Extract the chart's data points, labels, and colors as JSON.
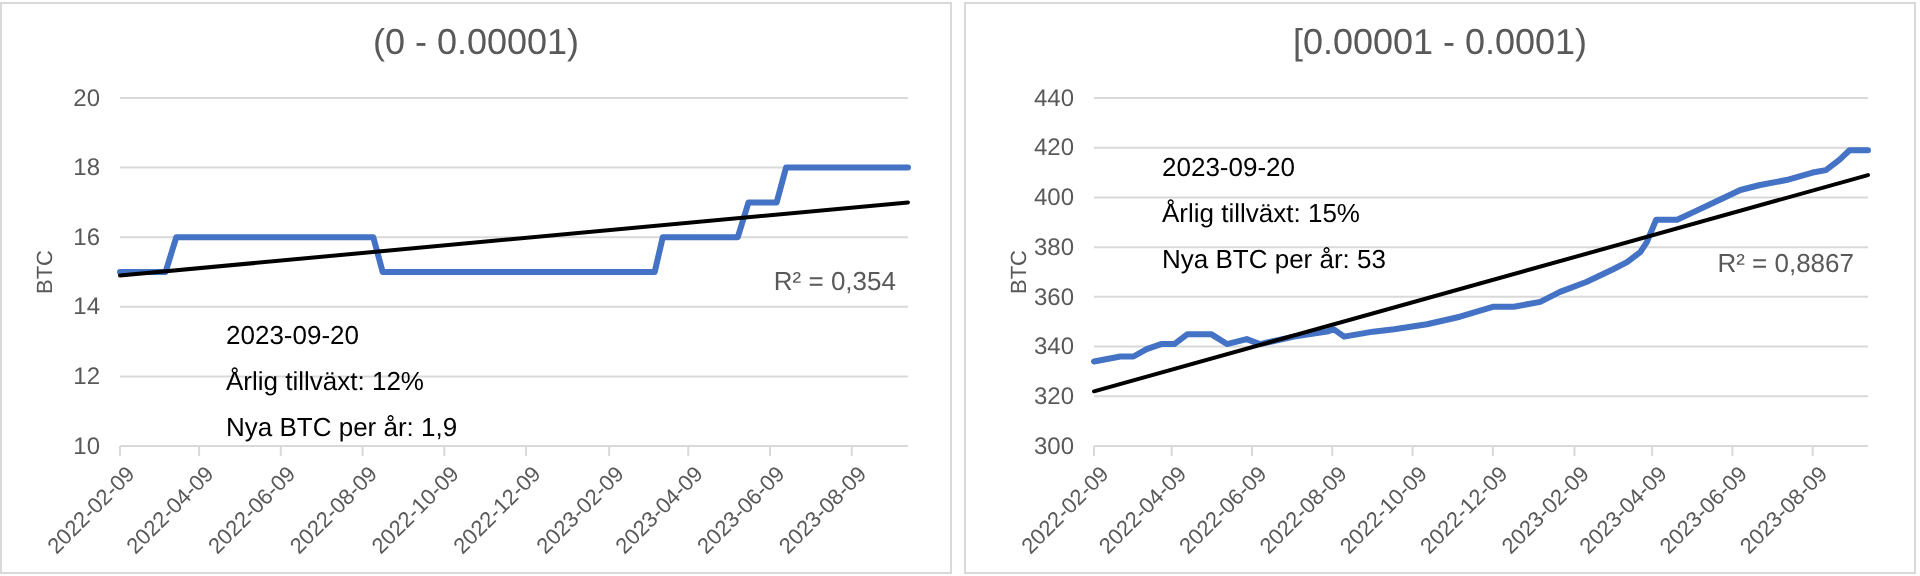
{
  "chart_data": [
    {
      "type": "line",
      "title": "(0 - 0.00001)",
      "ylabel": "BTC",
      "xlim": [
        "2022-02-09",
        "2023-09-20"
      ],
      "xticks": [
        "2022-02-09",
        "2022-04-09",
        "2022-06-09",
        "2022-08-09",
        "2022-10-09",
        "2022-12-09",
        "2023-02-09",
        "2023-04-09",
        "2023-06-09",
        "2023-08-09"
      ],
      "ylim": [
        10,
        20
      ],
      "yticks": [
        10,
        12,
        14,
        16,
        18,
        20
      ],
      "grid": "y",
      "series": [
        {
          "color": "#4472c4",
          "x": [
            "2022-02-09",
            "2022-03-15",
            "2022-03-23",
            "2022-08-17",
            "2022-08-24",
            "2023-03-15",
            "2023-03-21",
            "2023-05-16",
            "2023-05-24",
            "2023-06-14",
            "2023-06-21",
            "2023-09-20"
          ],
          "values": [
            15,
            15,
            16,
            16,
            15,
            15,
            16,
            16,
            17,
            17,
            18,
            18
          ]
        },
        {
          "type": "line",
          "color": "#000000",
          "x": [
            "2022-02-09",
            "2023-09-20"
          ],
          "values": [
            14.9,
            17.0
          ]
        }
      ],
      "annotations": [
        "2023-09-20",
        "Årlig tillväxt: 12%",
        "Nya BTC per år: 1,9",
        "R² = 0,354"
      ]
    },
    {
      "type": "line",
      "title": "[0.00001 - 0.0001)",
      "ylabel": "BTC",
      "xlim": [
        "2022-02-09",
        "2023-09-20"
      ],
      "xticks": [
        "2022-02-09",
        "2022-04-09",
        "2022-06-09",
        "2022-08-09",
        "2022-10-09",
        "2022-12-09",
        "2023-02-09",
        "2023-04-09",
        "2023-06-09",
        "2023-08-09"
      ],
      "ylim": [
        300,
        440
      ],
      "yticks": [
        300,
        320,
        340,
        360,
        380,
        400,
        420,
        440
      ],
      "grid": "y",
      "series": [
        {
          "color": "#4472c4",
          "x": [
            "2022-02-09",
            "2022-03-01",
            "2022-03-11",
            "2022-03-21",
            "2022-04-01",
            "2022-04-11",
            "2022-04-21",
            "2022-05-09",
            "2022-05-21",
            "2022-06-05",
            "2022-06-15",
            "2022-07-11",
            "2022-08-05",
            "2022-08-10",
            "2022-08-18",
            "2022-09-09",
            "2022-09-25",
            "2022-10-20",
            "2022-11-14",
            "2022-12-09",
            "2022-12-25",
            "2023-01-14",
            "2023-01-29",
            "2023-02-18",
            "2023-03-10",
            "2023-03-21",
            "2023-03-31",
            "2023-04-05",
            "2023-04-12",
            "2023-04-28",
            "2023-05-10",
            "2023-05-30",
            "2023-06-15",
            "2023-06-30",
            "2023-07-20",
            "2023-08-09",
            "2023-08-19",
            "2023-08-29",
            "2023-09-06",
            "2023-09-20"
          ],
          "values": [
            334,
            336,
            336,
            339,
            341,
            341,
            345,
            345,
            341,
            343,
            341,
            344,
            346,
            347,
            344,
            346,
            347,
            349,
            352,
            356,
            356,
            358,
            362,
            366,
            371,
            374,
            378,
            382,
            391,
            391,
            394,
            399,
            403,
            405,
            407,
            410,
            411,
            415,
            419,
            419
          ]
        },
        {
          "type": "line",
          "color": "#000000",
          "x": [
            "2022-02-09",
            "2023-09-20"
          ],
          "values": [
            322,
            409
          ]
        }
      ],
      "annotations": [
        "2023-09-20",
        "Årlig tillväxt: 15%",
        "Nya BTC per år: 53",
        "R² = 0,8867"
      ]
    }
  ]
}
